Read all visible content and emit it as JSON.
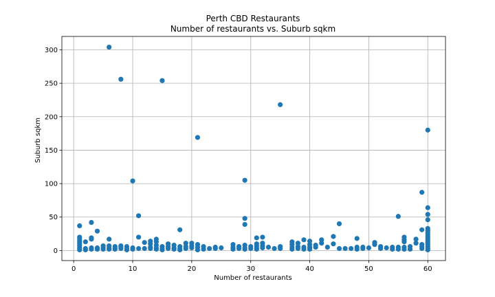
{
  "chart_data": {
    "type": "scatter",
    "title": "Perth CBD Restaurants",
    "subtitle": "Number of restaurants vs. Suburb sqkm",
    "xlabel": "Number of restaurants",
    "ylabel": "Suburb sqkm",
    "xlim": [
      -2,
      63
    ],
    "ylim": [
      -15,
      320
    ],
    "xticks": [
      0,
      10,
      20,
      30,
      40,
      50,
      60
    ],
    "yticks": [
      0,
      50,
      100,
      150,
      200,
      250,
      300
    ],
    "grid": true,
    "marker_color": "#1f77b4",
    "points": [
      [
        1,
        37
      ],
      [
        1,
        20
      ],
      [
        1,
        17
      ],
      [
        1,
        14
      ],
      [
        1,
        11
      ],
      [
        1,
        8
      ],
      [
        1,
        5
      ],
      [
        1,
        3
      ],
      [
        1,
        1
      ],
      [
        2,
        13
      ],
      [
        2,
        3
      ],
      [
        2,
        1
      ],
      [
        3,
        42
      ],
      [
        3,
        19
      ],
      [
        3,
        17
      ],
      [
        3,
        4
      ],
      [
        3,
        2
      ],
      [
        4,
        29
      ],
      [
        4,
        4
      ],
      [
        4,
        2
      ],
      [
        5,
        7
      ],
      [
        5,
        4
      ],
      [
        5,
        2
      ],
      [
        6,
        304
      ],
      [
        6,
        17
      ],
      [
        6,
        7
      ],
      [
        6,
        4
      ],
      [
        6,
        2
      ],
      [
        7,
        6
      ],
      [
        7,
        3
      ],
      [
        7,
        2
      ],
      [
        8,
        256
      ],
      [
        8,
        7
      ],
      [
        8,
        5
      ],
      [
        8,
        3
      ],
      [
        9,
        6
      ],
      [
        9,
        3
      ],
      [
        9,
        1
      ],
      [
        10,
        104
      ],
      [
        10,
        4
      ],
      [
        10,
        2
      ],
      [
        11,
        52
      ],
      [
        11,
        20
      ],
      [
        11,
        3
      ],
      [
        12,
        12
      ],
      [
        12,
        3
      ],
      [
        13,
        14
      ],
      [
        13,
        10
      ],
      [
        13,
        5
      ],
      [
        13,
        3
      ],
      [
        14,
        17
      ],
      [
        14,
        13
      ],
      [
        14,
        8
      ],
      [
        14,
        4
      ],
      [
        14,
        2
      ],
      [
        15,
        254
      ],
      [
        15,
        6
      ],
      [
        15,
        3
      ],
      [
        15,
        1
      ],
      [
        16,
        10
      ],
      [
        16,
        6
      ],
      [
        16,
        3
      ],
      [
        17,
        8
      ],
      [
        17,
        4
      ],
      [
        17,
        2
      ],
      [
        18,
        31
      ],
      [
        18,
        6
      ],
      [
        18,
        3
      ],
      [
        18,
        1
      ],
      [
        19,
        11
      ],
      [
        19,
        6
      ],
      [
        19,
        3
      ],
      [
        20,
        11
      ],
      [
        20,
        7
      ],
      [
        20,
        4
      ],
      [
        21,
        169
      ],
      [
        21,
        9
      ],
      [
        21,
        5
      ],
      [
        21,
        1
      ],
      [
        22,
        6
      ],
      [
        22,
        2
      ],
      [
        23,
        3
      ],
      [
        24,
        5
      ],
      [
        24,
        3
      ],
      [
        25,
        4
      ],
      [
        27,
        9
      ],
      [
        27,
        5
      ],
      [
        27,
        2
      ],
      [
        28,
        6
      ],
      [
        28,
        3
      ],
      [
        29,
        105
      ],
      [
        29,
        48
      ],
      [
        29,
        39
      ],
      [
        29,
        8
      ],
      [
        29,
        4
      ],
      [
        29,
        2
      ],
      [
        30,
        6
      ],
      [
        30,
        3
      ],
      [
        31,
        19
      ],
      [
        31,
        10
      ],
      [
        31,
        7
      ],
      [
        31,
        4
      ],
      [
        31,
        2
      ],
      [
        32,
        20
      ],
      [
        32,
        11
      ],
      [
        32,
        7
      ],
      [
        32,
        4
      ],
      [
        33,
        5
      ],
      [
        34,
        3
      ],
      [
        35,
        218
      ],
      [
        35,
        6
      ],
      [
        35,
        3
      ],
      [
        37,
        13
      ],
      [
        37,
        9
      ],
      [
        37,
        5
      ],
      [
        37,
        2
      ],
      [
        38,
        11
      ],
      [
        38,
        6
      ],
      [
        38,
        3
      ],
      [
        39,
        16
      ],
      [
        39,
        5
      ],
      [
        39,
        2
      ],
      [
        40,
        14
      ],
      [
        40,
        9
      ],
      [
        40,
        5
      ],
      [
        40,
        2
      ],
      [
        41,
        8
      ],
      [
        41,
        5
      ],
      [
        42,
        16
      ],
      [
        42,
        11
      ],
      [
        43,
        5
      ],
      [
        44,
        21
      ],
      [
        44,
        10
      ],
      [
        45,
        40
      ],
      [
        45,
        3
      ],
      [
        46,
        3
      ],
      [
        47,
        3
      ],
      [
        48,
        18
      ],
      [
        48,
        5
      ],
      [
        48,
        2
      ],
      [
        49,
        5
      ],
      [
        49,
        3
      ],
      [
        50,
        4
      ],
      [
        51,
        12
      ],
      [
        51,
        9
      ],
      [
        52,
        6
      ],
      [
        52,
        3
      ],
      [
        53,
        4
      ],
      [
        54,
        5
      ],
      [
        54,
        2
      ],
      [
        55,
        51
      ],
      [
        55,
        5
      ],
      [
        55,
        2
      ],
      [
        56,
        20
      ],
      [
        56,
        16
      ],
      [
        56,
        13
      ],
      [
        56,
        5
      ],
      [
        56,
        2
      ],
      [
        57,
        6
      ],
      [
        57,
        2
      ],
      [
        58,
        17
      ],
      [
        58,
        11
      ],
      [
        59,
        87
      ],
      [
        59,
        31
      ],
      [
        59,
        9
      ],
      [
        59,
        6
      ],
      [
        59,
        3
      ],
      [
        60,
        180
      ],
      [
        60,
        64
      ],
      [
        60,
        54
      ],
      [
        60,
        46
      ],
      [
        60,
        33
      ],
      [
        60,
        30
      ],
      [
        60,
        27
      ],
      [
        60,
        24
      ],
      [
        60,
        21
      ],
      [
        60,
        18
      ],
      [
        60,
        15
      ],
      [
        60,
        12
      ],
      [
        60,
        9
      ],
      [
        60,
        6
      ],
      [
        60,
        3
      ],
      [
        60,
        1
      ]
    ]
  }
}
